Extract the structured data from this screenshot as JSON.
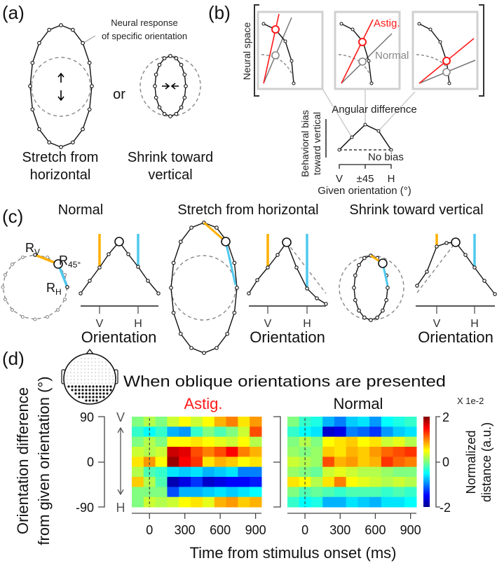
{
  "panel_a": {
    "label": "(a)",
    "annotation_line1": "Neural response",
    "annotation_line2": "of specific orientation",
    "or": "or",
    "stretch_line1": "Stretch from",
    "stretch_line2": "horizontal",
    "shrink_line1": "Shrink toward",
    "shrink_line2": "vertical"
  },
  "panel_b": {
    "label": "(b)",
    "neural_space": "Neural space",
    "astig": "Astig.",
    "normal": "Normal",
    "angular_difference": "Angular difference",
    "no_bias": "No bias",
    "ylabel_line1": "Behavioral bias",
    "ylabel_line2": "toward vertical",
    "ticks": [
      "V",
      "±45",
      "H"
    ],
    "xlabel": "Given orientation (°)"
  },
  "panel_c": {
    "label": "(c)",
    "titles": [
      "Normal",
      "Stretch from horizontal",
      "Shrink toward vertical"
    ],
    "rv": {
      "main": "R",
      "sub": "V"
    },
    "r45": {
      "main": "R",
      "sub": "45°"
    },
    "rh": {
      "main": "R",
      "sub": "H"
    },
    "tick_v": "V",
    "tick_h": "H",
    "xlabel": "Orientation"
  },
  "panel_d": {
    "label": "(d)",
    "title": "When oblique orientations are presented",
    "astig_title": "Astig.",
    "normal_title": "Normal",
    "ylabel_line1": "Orientation difference",
    "ylabel_line2": "from given orientation (°)",
    "yticks": [
      "90",
      "0",
      "-90"
    ],
    "v": "V",
    "h": "H",
    "xticks": [
      "0",
      "300",
      "600",
      "900"
    ],
    "xlabel": "Time from stimulus onset (ms)",
    "colorbar_scale": "X 1e-2",
    "colorbar_ticks": [
      "2",
      "0",
      "-2"
    ],
    "colorbar_label_line1": "Normalized",
    "colorbar_label_line2": "distance (a.u.)"
  },
  "colors": {
    "astig": "#ff1a1a",
    "normal": "#888888",
    "orange": "#ffb000",
    "cyan": "#4fc8ee"
  },
  "chart_data": {
    "type": "heatmap",
    "x_range_ms": [
      -150,
      950
    ],
    "y_range_deg": [
      -90,
      90
    ],
    "value_range": [
      -2,
      2
    ],
    "time_bins_ms": [
      -100,
      0,
      100,
      200,
      300,
      400,
      500,
      600,
      700,
      800,
      900
    ],
    "orientation_rows_deg": [
      90,
      67.5,
      45,
      22.5,
      0,
      -22.5,
      -45,
      -67.5,
      -90
    ],
    "series": [
      {
        "name": "Astig.",
        "values": [
          [
            0,
            0.2,
            0,
            0.3,
            0.5,
            0.3,
            0.5,
            0.8,
            1.0,
            0.6,
            0.9
          ],
          [
            -0.3,
            -0.5,
            -0.3,
            -0.8,
            -0.9,
            -0.3,
            0,
            -0.2,
            0,
            0.3,
            1.2
          ],
          [
            0,
            0.2,
            0,
            0.5,
            0.5,
            0.6,
            0.5,
            0.4,
            0.3,
            0.5,
            0.2
          ],
          [
            0.3,
            0.2,
            0.3,
            1.7,
            1.6,
            1.2,
            1.0,
            1.2,
            1.5,
            1.0,
            0.8
          ],
          [
            0.6,
            0.9,
            0.5,
            1.9,
            1.5,
            1.3,
            0.6,
            0.8,
            0.7,
            0.5,
            0.6
          ],
          [
            0.2,
            -0.2,
            -0.3,
            -0.6,
            -0.7,
            -0.6,
            -0.8,
            -0.7,
            -0.6,
            -1.0,
            -1.0
          ],
          [
            0.7,
            0.2,
            -0.2,
            -1.8,
            -1.6,
            -1.3,
            -1.7,
            -1.6,
            -1.5,
            -1.5,
            -1.4
          ],
          [
            0,
            0,
            0,
            -1.2,
            -0.8,
            -0.8,
            -0.7,
            -0.6,
            -0.7,
            -0.6,
            -0.5
          ],
          [
            0,
            0.3,
            0.2,
            0.3,
            0.5,
            0.6,
            0.4,
            0.8,
            0.9,
            0.7,
            0.8
          ]
        ]
      },
      {
        "name": "Normal",
        "values": [
          [
            0,
            -0.3,
            -0.4,
            -0.8,
            -1.0,
            -0.7,
            -0.6,
            -0.9,
            -0.5,
            -0.4,
            -0.3
          ],
          [
            -0.3,
            -0.5,
            -0.6,
            -1.7,
            -1.6,
            -1.0,
            -1.1,
            -1.3,
            -0.9,
            -0.7,
            -0.6
          ],
          [
            0,
            0.2,
            0,
            0.5,
            0.6,
            0.7,
            0.5,
            0.6,
            0.3,
            0.4,
            0.2
          ],
          [
            0.1,
            0,
            0.1,
            0.7,
            0.6,
            0.8,
            0.7,
            0.9,
            1.1,
            1.2,
            1.3
          ],
          [
            0.3,
            0.2,
            0.1,
            1.2,
            0.8,
            0.9,
            0.7,
            0.8,
            1.3,
            1.1,
            1.0
          ],
          [
            0.1,
            0,
            -0.1,
            0.3,
            0.4,
            0.3,
            0.2,
            0.2,
            0.1,
            0,
            0
          ],
          [
            0.6,
            0.5,
            0.2,
            0.6,
            1.0,
            0.5,
            0.4,
            0.3,
            0.2,
            0.3,
            0.2
          ],
          [
            0,
            -0.2,
            -0.1,
            -0.2,
            -0.3,
            -0.2,
            -0.2,
            -0.2,
            -0.3,
            -0.2,
            -0.3
          ],
          [
            -0.3,
            -0.5,
            -0.4,
            -0.8,
            -0.8,
            -0.6,
            -0.7,
            -0.8,
            -0.6,
            -0.6,
            -0.5
          ]
        ]
      }
    ]
  }
}
